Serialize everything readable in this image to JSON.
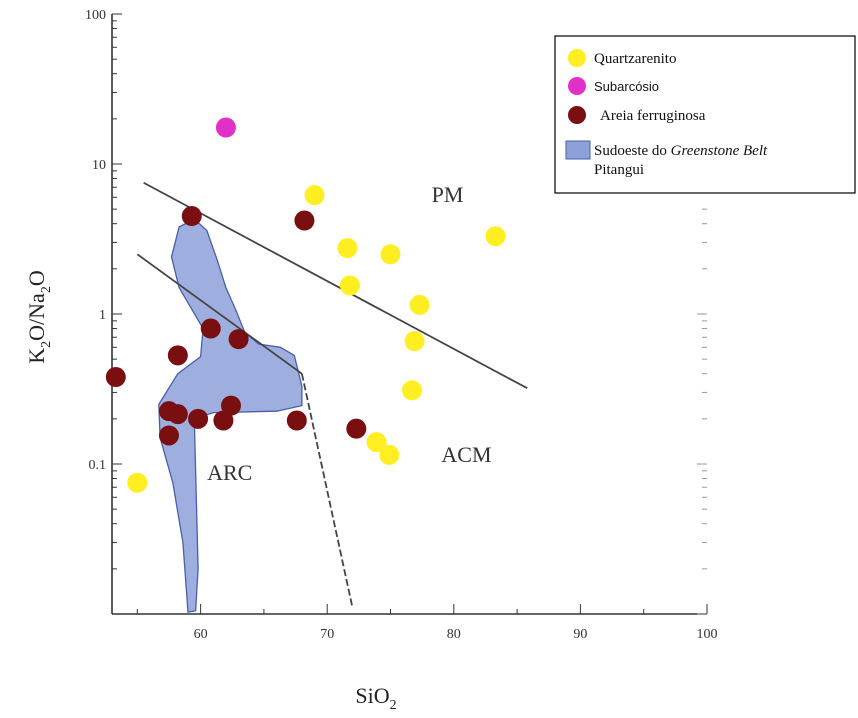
{
  "chart_data": {
    "type": "scatter",
    "title": "",
    "xlabel": "SiO",
    "xlabel_sub": "2",
    "ylabel_parts": [
      "K",
      "2",
      "O/Na",
      "2",
      "O"
    ],
    "xlim": [
      53,
      100
    ],
    "ylim": [
      0.01,
      100
    ],
    "y_scale": "log",
    "x_ticks": [
      60,
      70,
      80,
      90,
      100
    ],
    "y_ticks": [
      {
        "value": 100,
        "label": "100"
      },
      {
        "value": 10,
        "label": "10"
      },
      {
        "value": 1,
        "label": "1"
      },
      {
        "value": 0.1,
        "label": "0.1"
      }
    ],
    "legend_position": "top-right",
    "series": [
      {
        "name": "Quartzarenito",
        "color": "#ffee22",
        "points": [
          {
            "x": 55.0,
            "y": 0.075
          },
          {
            "x": 69.0,
            "y": 6.2
          },
          {
            "x": 71.6,
            "y": 2.75
          },
          {
            "x": 71.8,
            "y": 1.55
          },
          {
            "x": 75.0,
            "y": 2.5
          },
          {
            "x": 77.3,
            "y": 1.15
          },
          {
            "x": 76.9,
            "y": 0.66
          },
          {
            "x": 76.7,
            "y": 0.31
          },
          {
            "x": 73.9,
            "y": 0.14
          },
          {
            "x": 74.9,
            "y": 0.115
          },
          {
            "x": 83.3,
            "y": 3.3
          }
        ]
      },
      {
        "name": "Subarcósio",
        "color": "#e030c8",
        "points": [
          {
            "x": 62.0,
            "y": 17.5
          }
        ]
      },
      {
        "name": "Areia ferruginosa",
        "color": "#7a0f12",
        "points": [
          {
            "x": 53.3,
            "y": 0.38
          },
          {
            "x": 59.3,
            "y": 4.5
          },
          {
            "x": 68.2,
            "y": 4.2
          },
          {
            "x": 60.8,
            "y": 0.8
          },
          {
            "x": 63.0,
            "y": 0.68
          },
          {
            "x": 58.2,
            "y": 0.53
          },
          {
            "x": 57.5,
            "y": 0.225
          },
          {
            "x": 58.2,
            "y": 0.215
          },
          {
            "x": 59.8,
            "y": 0.2
          },
          {
            "x": 57.5,
            "y": 0.155
          },
          {
            "x": 62.4,
            "y": 0.245
          },
          {
            "x": 61.8,
            "y": 0.195
          },
          {
            "x": 67.6,
            "y": 0.195
          },
          {
            "x": 72.3,
            "y": 0.172
          }
        ]
      }
    ],
    "polygon": {
      "name": "Sudoeste do Greenstone Belt Pitangui",
      "name_plain": "Sudoeste do ",
      "name_italic": "Greenstone Belt",
      "name_line2": "Pitangui",
      "color": "#8da0d8",
      "points": [
        {
          "x": 59.5,
          "y": 4.3
        },
        {
          "x": 60.5,
          "y": 3.6
        },
        {
          "x": 61.3,
          "y": 2.3
        },
        {
          "x": 62.0,
          "y": 1.5
        },
        {
          "x": 62.8,
          "y": 1.05
        },
        {
          "x": 63.5,
          "y": 0.75
        },
        {
          "x": 64.6,
          "y": 0.63
        },
        {
          "x": 66.3,
          "y": 0.6
        },
        {
          "x": 67.4,
          "y": 0.53
        },
        {
          "x": 68.0,
          "y": 0.33
        },
        {
          "x": 68.0,
          "y": 0.245
        },
        {
          "x": 66.0,
          "y": 0.225
        },
        {
          "x": 61.0,
          "y": 0.22
        },
        {
          "x": 59.5,
          "y": 0.2
        },
        {
          "x": 59.8,
          "y": 0.02
        },
        {
          "x": 59.6,
          "y": 0.0105
        },
        {
          "x": 59.0,
          "y": 0.0103
        },
        {
          "x": 58.6,
          "y": 0.03
        },
        {
          "x": 57.8,
          "y": 0.075
        },
        {
          "x": 56.8,
          "y": 0.15
        },
        {
          "x": 56.7,
          "y": 0.25
        },
        {
          "x": 58.2,
          "y": 0.4
        },
        {
          "x": 60.0,
          "y": 0.52
        },
        {
          "x": 60.2,
          "y": 0.8
        },
        {
          "x": 58.3,
          "y": 1.5
        },
        {
          "x": 57.7,
          "y": 2.4
        },
        {
          "x": 58.3,
          "y": 3.8
        }
      ]
    },
    "boundary_lines": [
      {
        "style": "solid",
        "from": {
          "x": 55.5,
          "y": 7.5
        },
        "to": {
          "x": 85.8,
          "y": 0.32
        }
      },
      {
        "style": "solid",
        "from": {
          "x": 55.0,
          "y": 2.5
        },
        "to": {
          "x": 68.0,
          "y": 0.4
        }
      },
      {
        "style": "dashed",
        "from": {
          "x": 68.0,
          "y": 0.4
        },
        "to": {
          "x": 72.0,
          "y": 0.011
        }
      }
    ],
    "field_labels": [
      {
        "text": "PM",
        "x": 79.5,
        "y": 5.6
      },
      {
        "text": "ACM",
        "x": 81.0,
        "y": 0.103
      },
      {
        "text": "ARC",
        "x": 62.3,
        "y": 0.078
      }
    ]
  }
}
